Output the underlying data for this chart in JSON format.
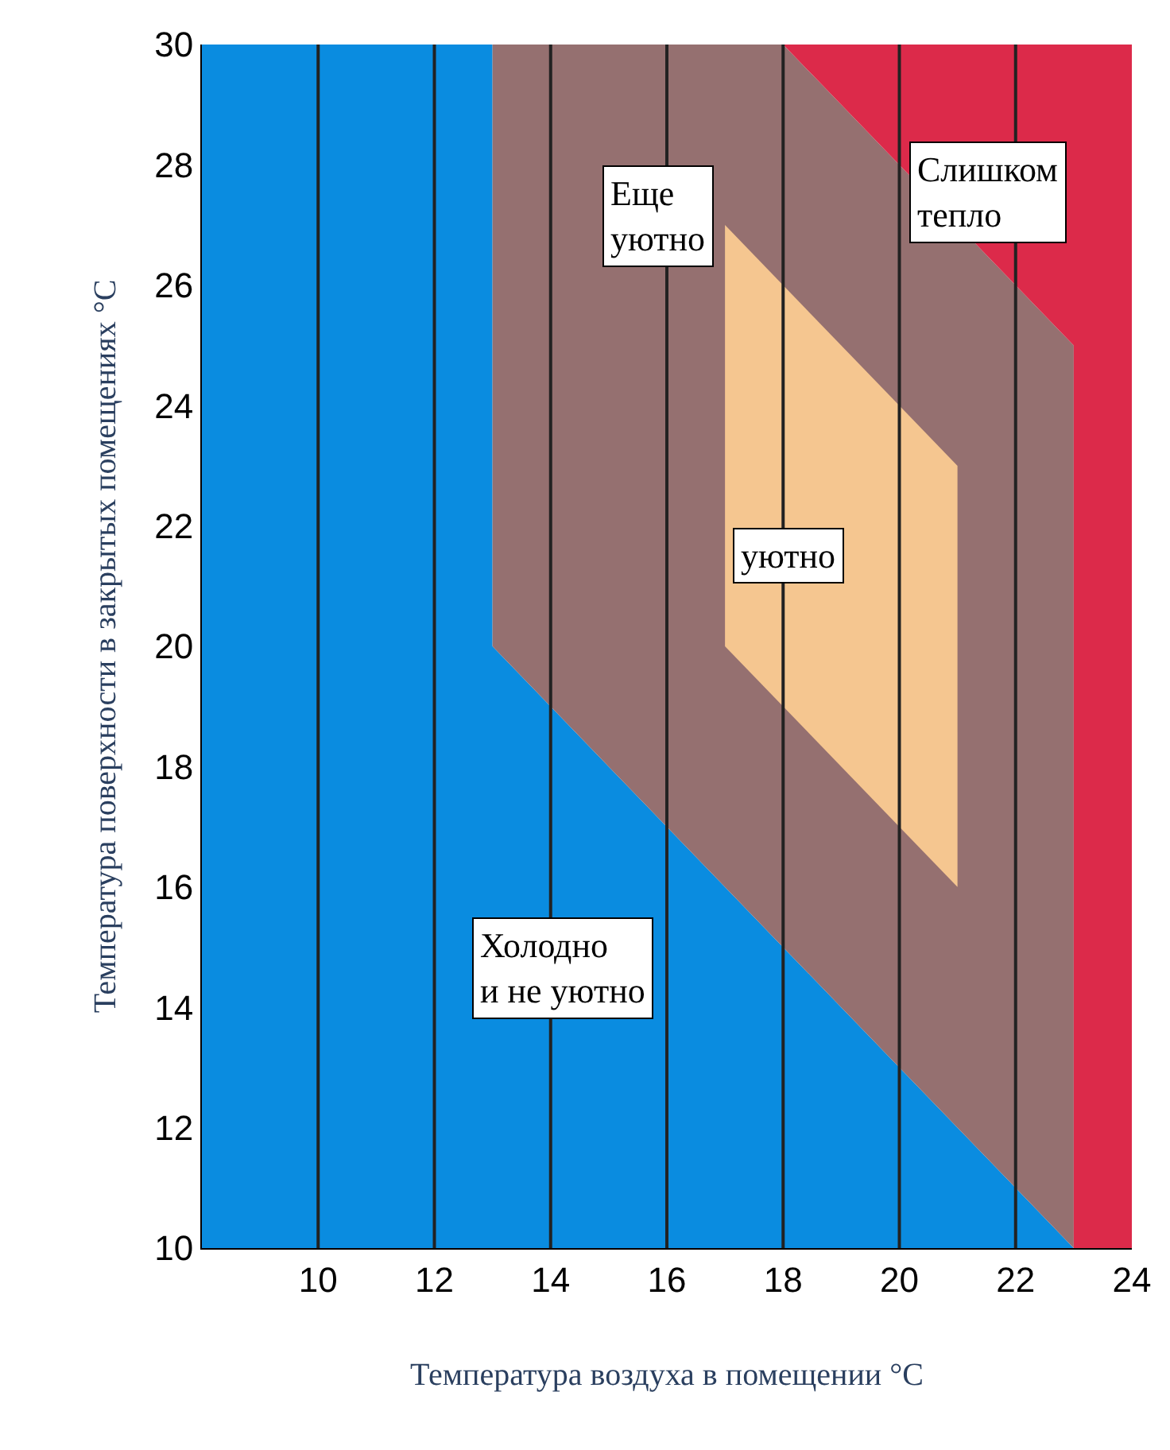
{
  "chart_data": {
    "type": "area",
    "xlabel": "Температура воздуха в помещении °C",
    "ylabel": "Температура поверхности в закрытых помещениях °C",
    "xlim": [
      8,
      24
    ],
    "xticks": [
      10,
      12,
      14,
      16,
      18,
      20,
      22,
      24
    ],
    "ylim": [
      10,
      30
    ],
    "yticks": [
      10,
      12,
      14,
      16,
      18,
      20,
      22,
      24,
      26,
      28,
      30
    ],
    "grid": "x",
    "series": [
      {
        "color": "#0a8ce0",
        "x": [
          8,
          8,
          13,
          13,
          23
        ],
        "values": [
          10,
          30,
          30,
          20,
          10
        ]
      },
      {
        "color": "#957070",
        "x": [
          13,
          13,
          18,
          23,
          23
        ],
        "values": [
          20,
          30,
          30,
          25,
          10
        ]
      },
      {
        "color": "#dc2a4a",
        "x": [
          18,
          24,
          24,
          23,
          23
        ],
        "values": [
          30,
          30,
          10,
          10,
          25
        ]
      },
      {
        "color": "#f5c690",
        "x": [
          17,
          17,
          21,
          21
        ],
        "values": [
          20,
          27,
          23,
          16
        ]
      }
    ],
    "annotations": [
      "Еще\nуютно",
      "Слишком\nтепло",
      "уютно",
      "Холодно\nи не уютно"
    ]
  }
}
